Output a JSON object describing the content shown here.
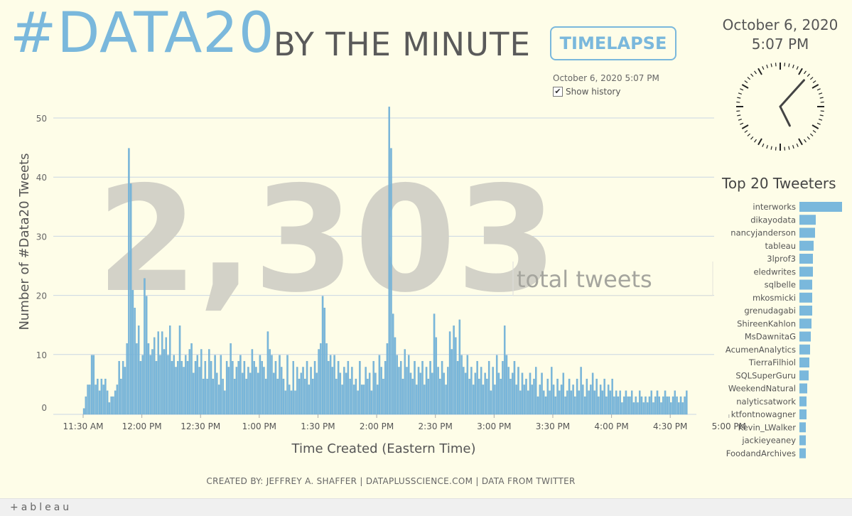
{
  "header": {
    "title_hash": "#DATA20",
    "title_rest": "BY THE MINUTE",
    "timelapse_label": "TIMELAPSE",
    "small_date": "October 6, 2020 5:07 PM",
    "show_history_label": "Show history",
    "show_history_checked": true
  },
  "clock": {
    "date": "October 6, 2020",
    "time": "5:07 PM",
    "hour": 5,
    "minute": 7
  },
  "overlay": {
    "total": "2,303",
    "total_label": "total tweets"
  },
  "footer": {
    "credit": "CREATED BY: JEFFREY A. SHAFFER | DATAPLUSSCIENCE.COM | DATA FROM TWITTER"
  },
  "brand": {
    "label": "+ableau"
  },
  "colors": {
    "bar": "#7ab8dc",
    "bar_edge": "#5f9fc8",
    "hash_title": "#7ab8dc",
    "background": "#fefde8",
    "overlay_number": "#d3d2c8",
    "overlay_label": "#a5a59e"
  },
  "chart_data": [
    {
      "type": "bar",
      "title": "",
      "xlabel": "Time Created (Eastern Time)",
      "ylabel": "Number of #Data20 Tweets",
      "ylim": [
        0,
        55
      ],
      "yticks": [
        0,
        10,
        20,
        30,
        40,
        50
      ],
      "grid": true,
      "x_start": "11:30 AM",
      "x_end": "5:07 PM",
      "xtick_labels": [
        "11:30 AM",
        "12:00 PM",
        "12:30 PM",
        "1:00 PM",
        "1:30 PM",
        "2:00 PM",
        "2:30 PM",
        "3:00 PM",
        "3:30 PM",
        "4:00 PM",
        "4:30 PM",
        "5:00 PM"
      ],
      "values": [
        1,
        3,
        5,
        5,
        10,
        10,
        5,
        6,
        4,
        6,
        5,
        6,
        4,
        2,
        3,
        3,
        4,
        5,
        9,
        6,
        9,
        8,
        12,
        45,
        39,
        21,
        18,
        12,
        15,
        9,
        10,
        23,
        20,
        12,
        10,
        11,
        13,
        9,
        14,
        10,
        14,
        11,
        13,
        10,
        15,
        9,
        10,
        8,
        9,
        15,
        9,
        8,
        10,
        9,
        11,
        12,
        7,
        9,
        10,
        8,
        11,
        6,
        9,
        6,
        11,
        9,
        6,
        10,
        7,
        5,
        10,
        6,
        4,
        9,
        8,
        12,
        9,
        6,
        8,
        9,
        10,
        7,
        9,
        6,
        8,
        7,
        11,
        9,
        8,
        7,
        10,
        9,
        8,
        6,
        14,
        11,
        10,
        7,
        9,
        6,
        10,
        8,
        6,
        4,
        10,
        5,
        4,
        9,
        4,
        8,
        6,
        7,
        8,
        6,
        9,
        5,
        8,
        6,
        9,
        7,
        11,
        12,
        20,
        18,
        12,
        9,
        10,
        8,
        10,
        6,
        9,
        7,
        5,
        8,
        7,
        9,
        6,
        8,
        5,
        6,
        4,
        9,
        5,
        5,
        8,
        6,
        7,
        4,
        9,
        7,
        5,
        10,
        8,
        6,
        9,
        12,
        52,
        45,
        17,
        13,
        10,
        8,
        9,
        6,
        11,
        8,
        10,
        7,
        6,
        9,
        5,
        8,
        7,
        9,
        5,
        8,
        6,
        9,
        7,
        17,
        13,
        8,
        6,
        9,
        7,
        5,
        8,
        14,
        11,
        15,
        13,
        9,
        16,
        10,
        8,
        7,
        10,
        6,
        8,
        5,
        7,
        9,
        6,
        8,
        5,
        7,
        6,
        9,
        4,
        8,
        5,
        10,
        7,
        6,
        9,
        15,
        10,
        8,
        6,
        7,
        9,
        5,
        8,
        4,
        7,
        5,
        6,
        4,
        7,
        5,
        6,
        8,
        3,
        5,
        7,
        4,
        3,
        6,
        4,
        8,
        5,
        3,
        6,
        4,
        5,
        7,
        3,
        4,
        6,
        4,
        5,
        3,
        6,
        4,
        8,
        5,
        3,
        6,
        4,
        5,
        7,
        4,
        6,
        3,
        5,
        4,
        6,
        3,
        5,
        4,
        6,
        3,
        4,
        3,
        4,
        2,
        3,
        4,
        3,
        3,
        4,
        2,
        3,
        2,
        4,
        3,
        2,
        3,
        2,
        3,
        4,
        2,
        3,
        4,
        3,
        2,
        3,
        4,
        3,
        3,
        2,
        3,
        4,
        3,
        2,
        3,
        2,
        3,
        4
      ]
    },
    {
      "type": "bar",
      "title": "Top 20 Tweeters",
      "orientation": "horizontal",
      "categories": [
        "interworks",
        "dikayodata",
        "nancyjanderson",
        "tableau",
        "3lprof3",
        "eledwrites",
        "sqlbelle",
        "mkosmicki",
        "grenudagabi",
        "ShireenKahlon",
        "MsDawnitaG",
        "AcumenAnalytics",
        "TierraFilhiol",
        "SQLSuperGuru",
        "WeekendNatural",
        "nalyticsatwork",
        "ktfontnowagner",
        "Kevin_LWalker",
        "jackieyeaney",
        "FoodandArchives"
      ],
      "values": [
        60,
        23,
        22,
        20,
        19,
        19,
        18,
        18,
        18,
        17,
        16,
        15,
        14,
        13,
        11,
        10,
        10,
        9,
        9,
        9
      ]
    }
  ]
}
